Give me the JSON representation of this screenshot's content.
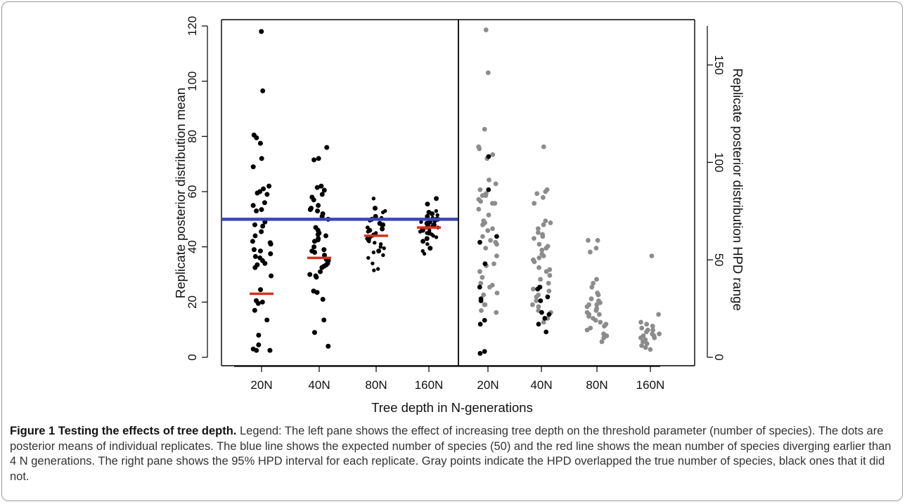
{
  "figure": {
    "caption_title": "Figure 1 Testing the effects of tree depth.",
    "caption_text": "Legend: The left pane shows the effect of increasing tree depth on the threshold parameter (number of species). The dots are posterior means of individual replicates. The blue line shows the expected number of species (50) and the red line shows the mean number of species diverging earlier than 4 N generations. The right pane shows the 95% HPD interval for each replicate. Gray points indicate the HPD overlapped the true number of species, black ones that it did not."
  },
  "chart_data": [
    {
      "type": "scatter",
      "ylabel": "Replicate posterior distribution mean",
      "xlabel": "Tree depth in N-generations",
      "categories": [
        "20N",
        "40N",
        "80N",
        "160N"
      ],
      "ylim": [
        0,
        120
      ],
      "yticks": [
        0,
        20,
        40,
        60,
        80,
        100,
        120
      ],
      "reference_line": {
        "value": 50,
        "color": "#3b4aa8"
      },
      "category_means": [
        23,
        36,
        44,
        47
      ],
      "mean_color": "#d2331a",
      "point_color": "#000000",
      "points": [
        [
          118,
          96.5,
          80.5,
          79.5,
          77.5,
          72,
          69,
          62,
          61,
          60,
          59.5,
          59,
          56,
          55,
          53.5,
          53,
          49,
          48,
          47.5,
          45.5,
          44,
          42,
          41.5,
          41,
          39,
          38.5,
          37.5,
          36.5,
          36,
          35,
          34,
          33.5,
          32.5,
          29.5,
          24.5,
          20.5,
          20,
          19.5,
          17,
          13.5,
          8,
          4.5,
          3,
          2.5,
          2.5
        ],
        [
          76,
          72,
          71.5,
          62,
          61.5,
          60.5,
          59,
          58,
          57,
          55,
          54,
          53.5,
          53,
          52,
          51,
          50,
          47,
          46,
          45,
          44.5,
          44,
          43,
          42.5,
          42,
          40,
          39,
          38.5,
          38,
          37,
          35.5,
          35,
          34,
          33.5,
          33,
          32.5,
          31,
          30,
          29.5,
          29,
          24,
          23.5,
          21,
          13.5,
          9,
          4
        ],
        [
          57.5,
          54,
          53,
          52.5,
          51,
          50.5,
          50,
          49.5,
          48.5,
          48,
          47.5,
          47,
          47,
          46.5,
          46,
          45.5,
          45,
          44.5,
          44,
          43.5,
          43,
          42.5,
          42,
          41.5,
          41,
          40,
          39.5,
          38.5,
          38,
          37,
          36,
          34,
          32,
          31.5
        ],
        [
          57.5,
          55.5,
          53,
          52.5,
          52,
          51.5,
          51,
          50.5,
          50,
          50,
          49.5,
          49,
          49,
          48.5,
          48,
          48,
          47.5,
          47,
          47,
          46.5,
          46,
          46,
          45.5,
          45,
          45,
          44.5,
          44,
          43.5,
          43,
          42,
          41,
          39.5,
          38.5,
          37.5
        ]
      ]
    },
    {
      "type": "scatter",
      "ylabel": "Replicate posterior distribution HPD range",
      "categories": [
        "20N",
        "40N",
        "80N",
        "160N"
      ],
      "ylim": [
        0,
        170
      ],
      "yticks": [
        0,
        50,
        100,
        150
      ],
      "overlap_color": "#8c8c8c",
      "no_overlap_color": "#000000",
      "points_overlap": [
        [
          168,
          146,
          117,
          108,
          107,
          104,
          102,
          91,
          89,
          86,
          84,
          83,
          83,
          81,
          80,
          79,
          79,
          76,
          73,
          70,
          69,
          68,
          66,
          65,
          62,
          60,
          59,
          58,
          56,
          52,
          48,
          47,
          44,
          41,
          38,
          37,
          36,
          33,
          32,
          27,
          27,
          24,
          23
        ],
        [
          108,
          86,
          85,
          84,
          82,
          79,
          70,
          69,
          68,
          66,
          64,
          63,
          62,
          61,
          58,
          57,
          56,
          55,
          53,
          52,
          51,
          50,
          49,
          46,
          45,
          44,
          42,
          40,
          38,
          36,
          35,
          34,
          32,
          31,
          29,
          27,
          26,
          24,
          23,
          20,
          18
        ],
        [
          60,
          60,
          56,
          54,
          40,
          38,
          36,
          33,
          32,
          30,
          29,
          28,
          27,
          27,
          26,
          25,
          24,
          23,
          22,
          22,
          21,
          20,
          19,
          18,
          17,
          16,
          15,
          14,
          12,
          11,
          10,
          8
        ],
        [
          52,
          22,
          18,
          17,
          16,
          15,
          14,
          14,
          13,
          12,
          12,
          11,
          11,
          10,
          10,
          9,
          8,
          7,
          6,
          5,
          4
        ]
      ],
      "points_no_overlap": [
        [
          103,
          86,
          62,
          59,
          48,
          36,
          30,
          29,
          19,
          17,
          3,
          2
        ],
        [
          36,
          35,
          31,
          29,
          23,
          22,
          20,
          17,
          13
        ]
      ]
    }
  ]
}
